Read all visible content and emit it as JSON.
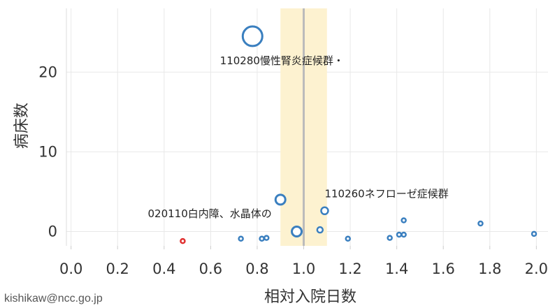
{
  "chart_data": {
    "type": "scatter",
    "xlabel": "相対入院日数",
    "ylabel": "病床数",
    "x_ticks": [
      "0.0",
      "0.2",
      "0.4",
      "0.6",
      "0.8",
      "1.0",
      "1.2",
      "1.4",
      "1.6",
      "1.8",
      "2.0"
    ],
    "y_ticks": [
      "0",
      "10",
      "20"
    ],
    "xlim": [
      -0.02,
      2.05
    ],
    "ylim": [
      -1.8,
      28
    ],
    "grid": true,
    "reference_line": {
      "x": 1.0
    },
    "reference_band": {
      "x": [
        0.9,
        1.1
      ]
    },
    "points": [
      {
        "x": 0.78,
        "y": 24.5,
        "size": 14
      },
      {
        "x": 0.9,
        "y": 4.0,
        "size": 7
      },
      {
        "x": 0.97,
        "y": 0.0,
        "size": 7
      },
      {
        "x": 1.09,
        "y": 2.6,
        "size": 5
      },
      {
        "x": 1.07,
        "y": 0.2,
        "size": 4
      },
      {
        "x": 0.48,
        "y": -1.2,
        "size": 3,
        "highlight": true
      },
      {
        "x": 0.73,
        "y": -0.9,
        "size": 3
      },
      {
        "x": 0.82,
        "y": -0.9,
        "size": 3
      },
      {
        "x": 0.84,
        "y": -0.8,
        "size": 3
      },
      {
        "x": 1.19,
        "y": -0.9,
        "size": 3
      },
      {
        "x": 1.37,
        "y": -0.8,
        "size": 3
      },
      {
        "x": 1.41,
        "y": -0.4,
        "size": 3
      },
      {
        "x": 1.43,
        "y": -0.4,
        "size": 3
      },
      {
        "x": 1.43,
        "y": 1.4,
        "size": 3
      },
      {
        "x": 1.76,
        "y": 1.0,
        "size": 3
      },
      {
        "x": 1.99,
        "y": -0.3,
        "size": 3
      }
    ],
    "annotations": [
      {
        "text": "110280慢性腎炎症候群・",
        "x": 0.64,
        "y": 21.0
      },
      {
        "text": "110260ネフローゼ症候群",
        "x": 1.09,
        "y": 4.3
      },
      {
        "text": "020110白内障、水晶体の",
        "x": 0.33,
        "y": 1.8
      }
    ],
    "colors": {
      "point": "#3a7fbf",
      "highlight": "#e03030",
      "band": "#fdf2d0",
      "refline": "#bbbbbb",
      "grid": "#e8e8e8"
    }
  },
  "footer": {
    "credit": "kishikaw@ncc.go.jp"
  }
}
